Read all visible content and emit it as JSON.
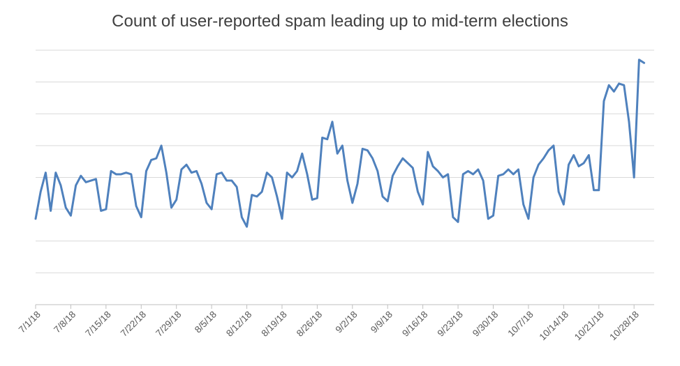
{
  "chart_data": {
    "type": "line",
    "title": "Count of user-reported spam leading up to mid-term elections",
    "xlabel": "",
    "ylabel": "",
    "grid": true,
    "y_tick_labels_shown": false,
    "legend": "none",
    "ylim": [
      0,
      8
    ],
    "x_start": "7/1/18",
    "x_end": "11/1/18",
    "x_tick_labels": [
      "7/1/18",
      "7/8/18",
      "7/15/18",
      "7/22/18",
      "7/29/18",
      "8/5/18",
      "8/12/18",
      "8/19/18",
      "8/26/18",
      "9/2/18",
      "9/9/18",
      "9/16/18",
      "9/23/18",
      "9/30/18",
      "10/7/18",
      "10/14/18",
      "10/21/18",
      "10/28/18"
    ],
    "series": [
      {
        "color": "#4f81bd",
        "values": [
          2.7,
          3.55,
          4.15,
          2.95,
          4.15,
          3.75,
          3.05,
          2.8,
          3.75,
          4.05,
          3.85,
          3.9,
          3.95,
          2.95,
          3.0,
          4.2,
          4.1,
          4.1,
          4.15,
          4.1,
          3.1,
          2.75,
          4.2,
          4.55,
          4.6,
          5.0,
          4.15,
          3.05,
          3.3,
          4.25,
          4.4,
          4.15,
          4.2,
          3.8,
          3.2,
          3.0,
          4.1,
          4.15,
          3.9,
          3.9,
          3.7,
          2.75,
          2.45,
          3.45,
          3.4,
          3.55,
          4.15,
          4.0,
          3.4,
          2.7,
          4.15,
          4.0,
          4.2,
          4.75,
          4.1,
          3.3,
          3.35,
          5.25,
          5.2,
          5.75,
          4.75,
          5.0,
          3.9,
          3.2,
          3.8,
          4.9,
          4.85,
          4.6,
          4.2,
          3.4,
          3.25,
          4.05,
          4.35,
          4.6,
          4.45,
          4.3,
          3.55,
          3.15,
          4.8,
          4.35,
          4.2,
          4.0,
          4.1,
          2.75,
          2.6,
          4.1,
          4.2,
          4.1,
          4.25,
          3.9,
          2.7,
          2.8,
          4.05,
          4.1,
          4.25,
          4.1,
          4.25,
          3.15,
          2.7,
          4.0,
          4.4,
          4.6,
          4.85,
          5.0,
          3.55,
          3.15,
          4.4,
          4.7,
          4.35,
          4.45,
          4.7,
          3.6,
          3.6,
          6.4,
          6.9,
          6.7,
          6.95,
          6.9,
          5.75,
          4.0,
          7.7,
          7.6
        ]
      }
    ]
  }
}
